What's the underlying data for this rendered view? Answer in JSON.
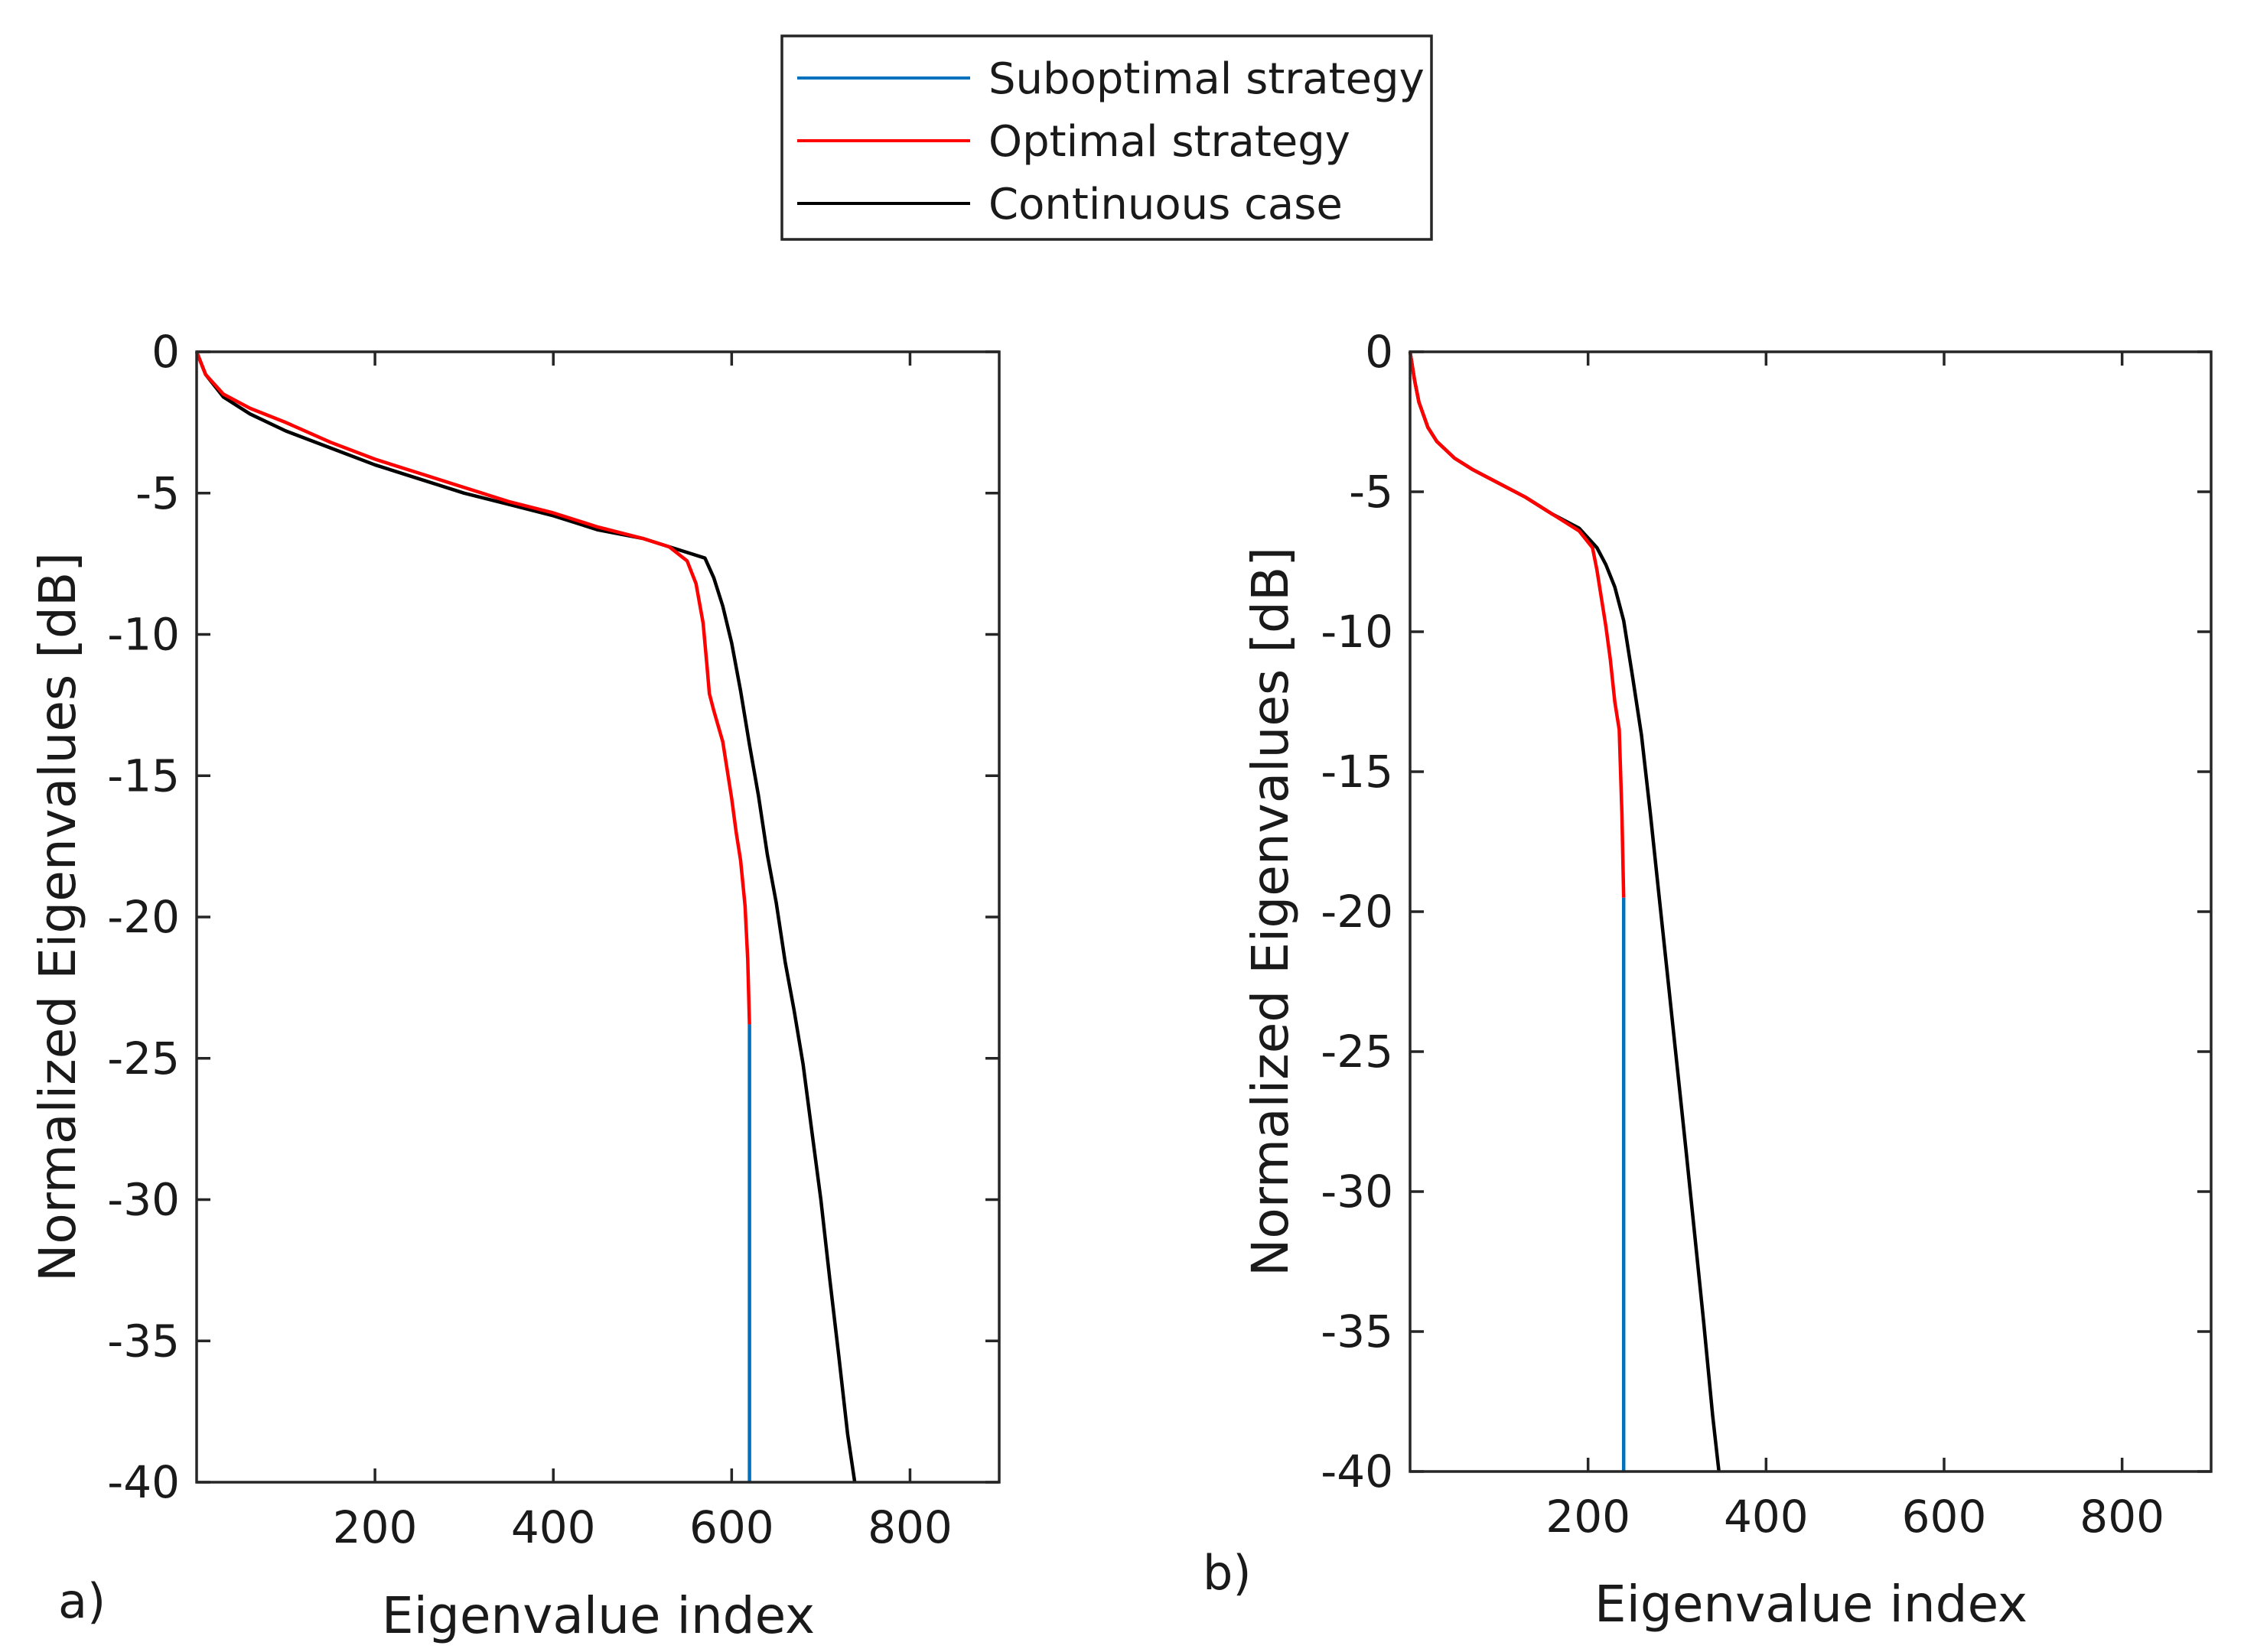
{
  "chart_data": [
    {
      "type": "line",
      "panel_label": "a)",
      "xlabel": "Eigenvalue index",
      "ylabel": "Normalized Eigenvalues [dB]",
      "xlim": [
        0,
        900
      ],
      "ylim": [
        -40,
        0
      ],
      "xticks": [
        200,
        400,
        600,
        800
      ],
      "xtick_labels": [
        "200",
        "400",
        "600",
        "800"
      ],
      "yticks": [
        0,
        -5,
        -10,
        -15,
        -20,
        -25,
        -30,
        -35,
        -40
      ],
      "ytick_labels": [
        "0",
        "-5",
        "-10",
        "-15",
        "-20",
        "-25",
        "-30",
        "-35",
        "-40"
      ],
      "series": [
        {
          "name": "Suboptimal strategy",
          "color": "#0072BD",
          "x": [
            620,
            620
          ],
          "y": [
            -23.8,
            -40
          ]
        },
        {
          "name": "Optimal strategy",
          "color": "#FF0000",
          "x": [
            0,
            10,
            30,
            60,
            100,
            150,
            200,
            250,
            300,
            350,
            400,
            450,
            500,
            530,
            550,
            560,
            568,
            572,
            575,
            580,
            590,
            600,
            605,
            610,
            615,
            618,
            620
          ],
          "y": [
            0,
            -0.8,
            -1.5,
            -2.0,
            -2.5,
            -3.2,
            -3.8,
            -4.3,
            -4.8,
            -5.3,
            -5.7,
            -6.2,
            -6.6,
            -6.9,
            -7.4,
            -8.2,
            -9.6,
            -11.0,
            -12.1,
            -12.7,
            -13.8,
            -15.8,
            -17.0,
            -18.0,
            -19.6,
            -21.5,
            -23.8
          ]
        },
        {
          "name": "Continuous case",
          "color": "#000000",
          "x": [
            0,
            10,
            30,
            60,
            100,
            150,
            200,
            250,
            300,
            350,
            400,
            450,
            500,
            540,
            570,
            580,
            590,
            600,
            610,
            620,
            630,
            640,
            650,
            660,
            670,
            680,
            690,
            700,
            710,
            720,
            730,
            738
          ],
          "y": [
            0,
            -0.8,
            -1.6,
            -2.2,
            -2.8,
            -3.4,
            -4.0,
            -4.5,
            -5.0,
            -5.4,
            -5.8,
            -6.3,
            -6.6,
            -7.0,
            -7.3,
            -8.0,
            -9.0,
            -10.3,
            -12.0,
            -13.9,
            -15.7,
            -17.8,
            -19.5,
            -21.6,
            -23.3,
            -25.2,
            -27.6,
            -30.0,
            -32.8,
            -35.5,
            -38.3,
            -40.0
          ]
        }
      ]
    },
    {
      "type": "line",
      "panel_label": "b)",
      "xlabel": "Eigenvalue index",
      "ylabel": "Normalized Eigenvalues [dB]",
      "xlim": [
        0,
        900
      ],
      "ylim": [
        -40,
        0
      ],
      "xticks": [
        200,
        400,
        600,
        800
      ],
      "xtick_labels": [
        "200",
        "400",
        "600",
        "800"
      ],
      "yticks": [
        0,
        -5,
        -10,
        -15,
        -20,
        -25,
        -30,
        -35,
        -40
      ],
      "ytick_labels": [
        "0",
        "-5",
        "-10",
        "-15",
        "-20",
        "-25",
        "-30",
        "-35",
        "-40"
      ],
      "series": [
        {
          "name": "Suboptimal strategy",
          "color": "#0072BD",
          "x": [
            240,
            240
          ],
          "y": [
            -19.5,
            -40
          ]
        },
        {
          "name": "Optimal strategy",
          "color": "#FF0000",
          "x": [
            0,
            5,
            10,
            20,
            30,
            50,
            70,
            100,
            130,
            160,
            190,
            205,
            210,
            215,
            220,
            225,
            230,
            235,
            238,
            240
          ],
          "y": [
            0,
            -1.0,
            -1.8,
            -2.7,
            -3.2,
            -3.8,
            -4.2,
            -4.7,
            -5.2,
            -5.8,
            -6.4,
            -7.0,
            -7.8,
            -8.8,
            -9.8,
            -11.0,
            -12.5,
            -13.5,
            -16.5,
            -19.5
          ]
        },
        {
          "name": "Continuous case",
          "color": "#000000",
          "x": [
            0,
            5,
            10,
            20,
            30,
            50,
            70,
            100,
            130,
            160,
            190,
            210,
            220,
            230,
            240,
            250,
            260,
            270,
            280,
            290,
            300,
            310,
            320,
            330,
            340,
            347
          ],
          "y": [
            0,
            -1.0,
            -1.8,
            -2.7,
            -3.2,
            -3.8,
            -4.2,
            -4.7,
            -5.2,
            -5.8,
            -6.3,
            -7.0,
            -7.6,
            -8.4,
            -9.6,
            -11.6,
            -13.7,
            -16.5,
            -19.5,
            -22.5,
            -25.5,
            -28.5,
            -31.6,
            -34.7,
            -38.0,
            -40.0
          ]
        }
      ]
    }
  ],
  "legend": {
    "entries": [
      {
        "label": "Suboptimal strategy",
        "color": "#0072BD"
      },
      {
        "label": "Optimal strategy",
        "color": "#FF0000"
      },
      {
        "label": "Continuous case",
        "color": "#000000"
      }
    ]
  }
}
